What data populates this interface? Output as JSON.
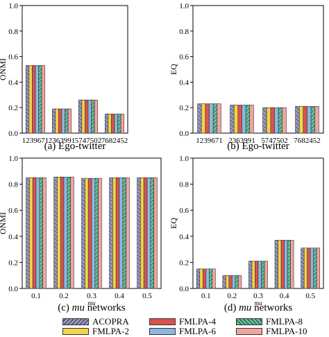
{
  "legend": {
    "items": [
      {
        "name": "ACOPRA",
        "color": "#9a9ac8",
        "pattern": "hatch-left"
      },
      {
        "name": "FMLPA-2",
        "color": "#f2d44a",
        "pattern": "none"
      },
      {
        "name": "FMLPA-4",
        "color": "#d9534f",
        "pattern": "none"
      },
      {
        "name": "FMLPA-6",
        "color": "#8fb8e0",
        "pattern": "none"
      },
      {
        "name": "FMLPA-8",
        "color": "#5fc49a",
        "pattern": "hatch-right"
      },
      {
        "name": "FMLPA-10",
        "color": "#f4a3a0",
        "pattern": "none"
      }
    ]
  },
  "chart_data": [
    {
      "id": "a",
      "type": "bar",
      "caption": "(a) Ego-twitter",
      "xlabel": "",
      "ylabel": "ONMI",
      "ylim": [
        0,
        1.0
      ],
      "yticks": [
        "0.0",
        "0.2",
        "0.4",
        "0.6",
        "0.8",
        "1.0"
      ],
      "categories": [
        "1239671",
        "2363991",
        "5747502",
        "7682452"
      ],
      "series": [
        {
          "name": "ACOPRA",
          "values": [
            0.53,
            0.19,
            0.26,
            0.15
          ]
        },
        {
          "name": "FMLPA-2",
          "values": [
            0.53,
            0.19,
            0.26,
            0.15
          ]
        },
        {
          "name": "FMLPA-4",
          "values": [
            0.53,
            0.19,
            0.26,
            0.15
          ]
        },
        {
          "name": "FMLPA-6",
          "values": [
            0.53,
            0.19,
            0.26,
            0.15
          ]
        },
        {
          "name": "FMLPA-8",
          "values": [
            0.53,
            0.19,
            0.26,
            0.15
          ]
        },
        {
          "name": "FMLPA-10",
          "values": [
            0.53,
            0.19,
            0.26,
            0.15
          ]
        }
      ]
    },
    {
      "id": "b",
      "type": "bar",
      "caption": "(b) Ego-twitter",
      "xlabel": "",
      "ylabel": "EQ",
      "ylim": [
        0,
        1.0
      ],
      "yticks": [
        "0.0",
        "0.2",
        "0.4",
        "0.6",
        "0.8",
        "1.0"
      ],
      "categories": [
        "1239671",
        "2363991",
        "5747502",
        "7682452"
      ],
      "series": [
        {
          "name": "ACOPRA",
          "values": [
            0.23,
            0.22,
            0.2,
            0.21
          ]
        },
        {
          "name": "FMLPA-2",
          "values": [
            0.23,
            0.22,
            0.2,
            0.21
          ]
        },
        {
          "name": "FMLPA-4",
          "values": [
            0.23,
            0.22,
            0.2,
            0.21
          ]
        },
        {
          "name": "FMLPA-6",
          "values": [
            0.23,
            0.22,
            0.2,
            0.21
          ]
        },
        {
          "name": "FMLPA-8",
          "values": [
            0.23,
            0.22,
            0.2,
            0.21
          ]
        },
        {
          "name": "FMLPA-10",
          "values": [
            0.23,
            0.22,
            0.2,
            0.21
          ]
        }
      ]
    },
    {
      "id": "c",
      "type": "bar",
      "caption": "(c) mu networks",
      "caption_prefix": "(c) ",
      "caption_italic": "mu",
      "caption_suffix": " networks",
      "xlabel": "mu",
      "ylabel": "ONMI",
      "ylim": [
        0,
        1.0
      ],
      "yticks": [
        "0.0",
        "0.2",
        "0.4",
        "0.6",
        "0.8",
        "1.0"
      ],
      "categories": [
        "0.1",
        "0.2",
        "0.3",
        "0.4",
        "0.5"
      ],
      "series": [
        {
          "name": "ACOPRA",
          "values": [
            0.85,
            0.855,
            0.845,
            0.85,
            0.85
          ]
        },
        {
          "name": "FMLPA-2",
          "values": [
            0.85,
            0.855,
            0.845,
            0.85,
            0.85
          ]
        },
        {
          "name": "FMLPA-4",
          "values": [
            0.85,
            0.855,
            0.845,
            0.85,
            0.85
          ]
        },
        {
          "name": "FMLPA-6",
          "values": [
            0.85,
            0.855,
            0.845,
            0.85,
            0.85
          ]
        },
        {
          "name": "FMLPA-8",
          "values": [
            0.85,
            0.855,
            0.845,
            0.85,
            0.85
          ]
        },
        {
          "name": "FMLPA-10",
          "values": [
            0.85,
            0.855,
            0.845,
            0.85,
            0.85
          ]
        }
      ]
    },
    {
      "id": "d",
      "type": "bar",
      "caption": "(d) mu networks",
      "caption_prefix": "(d) ",
      "caption_italic": "mu",
      "caption_suffix": " networks",
      "xlabel": "mu",
      "ylabel": "EQ",
      "ylim": [
        0,
        1.0
      ],
      "yticks": [
        "0.0",
        "0.2",
        "0.4",
        "0.6",
        "0.8",
        "1.0"
      ],
      "categories": [
        "0.1",
        "0.2",
        "0.3",
        "0.4",
        "0.5"
      ],
      "series": [
        {
          "name": "ACOPRA",
          "values": [
            0.15,
            0.1,
            0.21,
            0.37,
            0.31
          ]
        },
        {
          "name": "FMLPA-2",
          "values": [
            0.15,
            0.1,
            0.21,
            0.37,
            0.31
          ]
        },
        {
          "name": "FMLPA-4",
          "values": [
            0.15,
            0.1,
            0.21,
            0.37,
            0.31
          ]
        },
        {
          "name": "FMLPA-6",
          "values": [
            0.15,
            0.1,
            0.21,
            0.37,
            0.31
          ]
        },
        {
          "name": "FMLPA-8",
          "values": [
            0.15,
            0.1,
            0.21,
            0.37,
            0.31
          ]
        },
        {
          "name": "FMLPA-10",
          "values": [
            0.15,
            0.1,
            0.21,
            0.37,
            0.31
          ]
        }
      ]
    }
  ]
}
